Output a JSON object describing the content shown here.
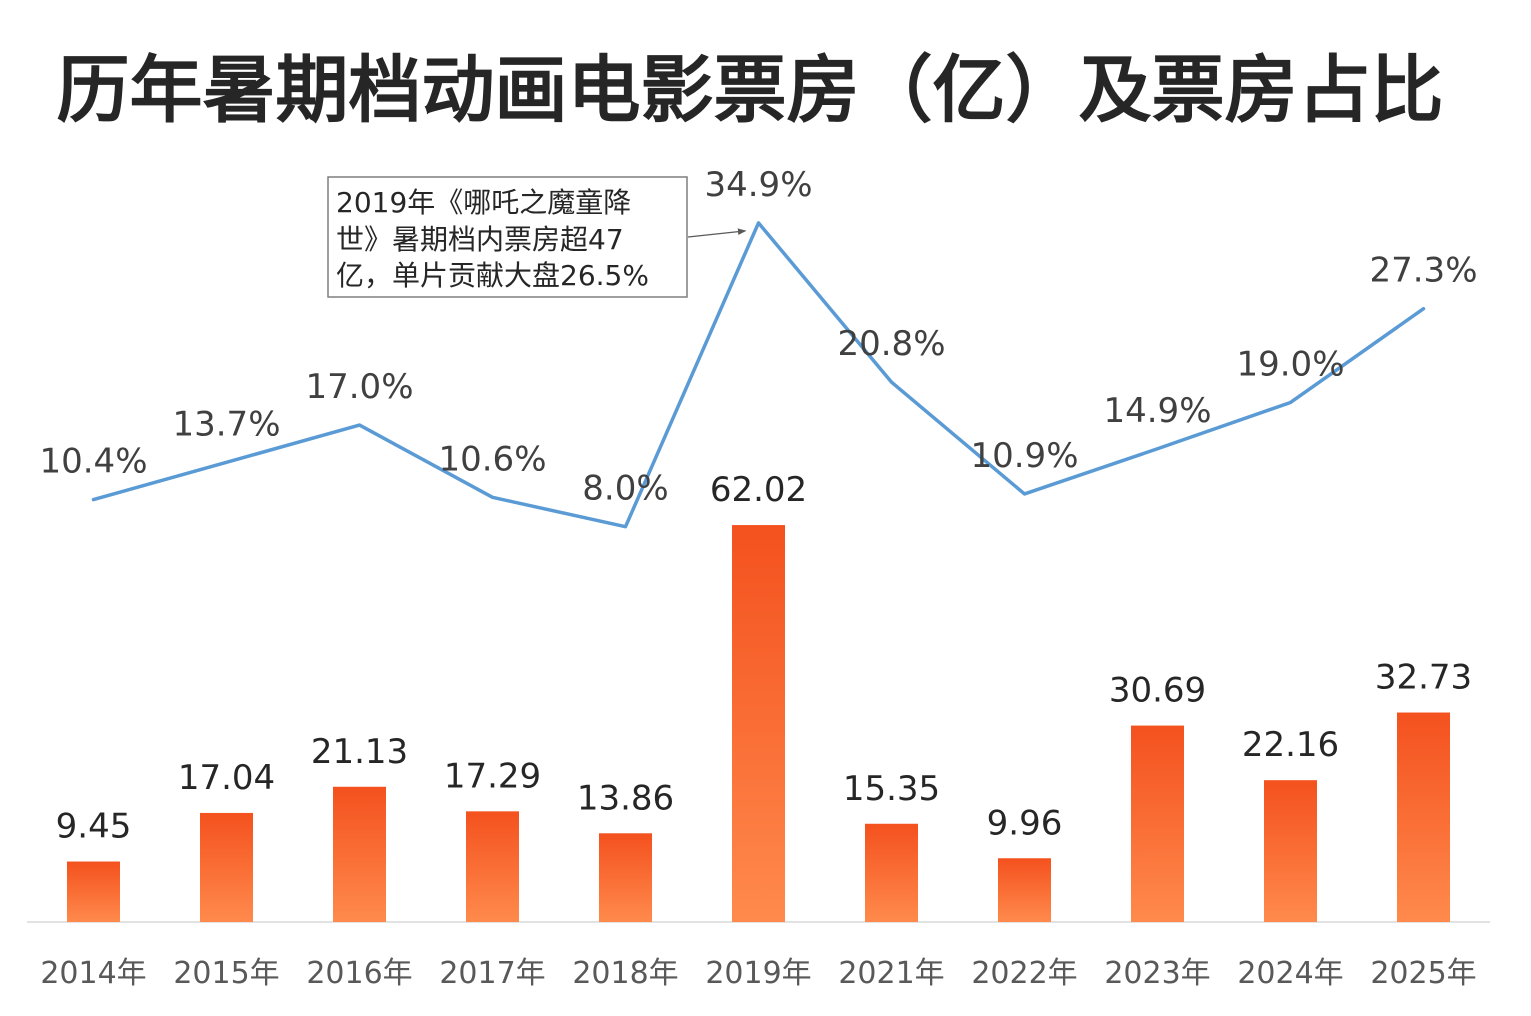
{
  "chart_data": {
    "type": "bar",
    "title": "历年暑期档动画电影票房（亿）及票房占比",
    "categories": [
      "2014年",
      "2015年",
      "2016年",
      "2017年",
      "2018年",
      "2019年",
      "2021年",
      "2022年",
      "2023年",
      "2024年",
      "2025年"
    ],
    "series": [
      {
        "type": "bar",
        "values": [
          9.45,
          17.04,
          21.13,
          17.29,
          13.86,
          62.02,
          15.35,
          9.96,
          30.69,
          22.16,
          32.73
        ]
      },
      {
        "type": "line",
        "values": [
          10.4,
          13.7,
          17.0,
          10.6,
          8.0,
          34.9,
          20.8,
          10.9,
          14.9,
          19.0,
          27.3
        ],
        "labels": [
          "10.4%",
          "13.7%",
          "17.0%",
          "10.6%",
          "8.0%",
          "34.9%",
          "20.8%",
          "10.9%",
          "14.9%",
          "19.0%",
          "27.3%"
        ]
      }
    ],
    "ylim": [
      0,
      120
    ],
    "y2lim": [
      -27,
      41
    ],
    "grid": false,
    "legend": "none",
    "annotation": {
      "lines": [
        "2019年《哪吒之魔童降",
        "世》暑期档内票房超47",
        "亿，单片贡献大盘26.5%"
      ]
    }
  },
  "colors": {
    "bar_gradient_top": "#F4511E",
    "bar_gradient_bottom": "#FF8A4C",
    "line": "#5B9BD5",
    "title": "#262626",
    "bar_label": "#262626",
    "line_label": "#404040",
    "tick_label": "#595959",
    "baseline": "#D9D9D9",
    "annotation_border": "#7F7F7F",
    "annotation_text": "#262626",
    "annotation_leader": "#595959"
  }
}
